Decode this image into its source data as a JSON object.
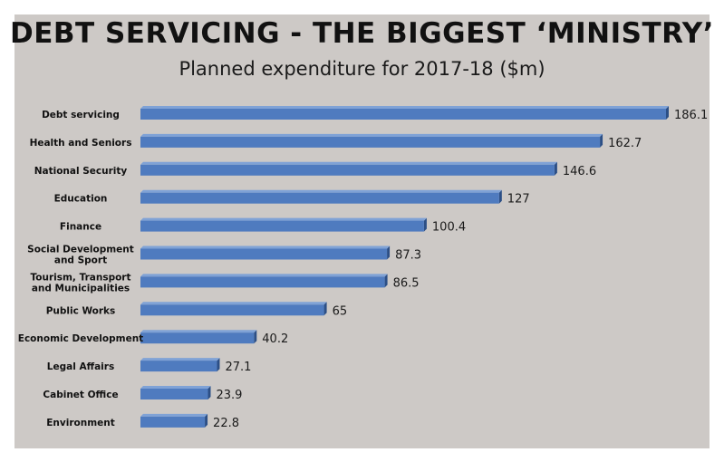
{
  "chart_data": {
    "type": "bar",
    "orientation": "horizontal",
    "title": "DEBT SERVICING - THE BIGGEST ‘MINISTRY’",
    "subtitle": "Planned expenditure for 2017-18 ($m)",
    "categories": [
      "Debt servicing",
      "Health and Seniors",
      "National Security",
      "Education",
      "Finance",
      "Social Development\nand Sport",
      "Tourism, Transport\nand Municipalities",
      "Public Works",
      "Economic Development",
      "Legal Affairs",
      "Cabinet Office",
      "Environment"
    ],
    "values": [
      186.1,
      162.7,
      146.6,
      127,
      100.4,
      87.3,
      86.5,
      65,
      40.2,
      27.1,
      23.9,
      22.8
    ],
    "value_labels": [
      "186.1",
      "162.7",
      "146.6",
      "127",
      "100.4",
      "87.3",
      "86.5",
      "65",
      "40.2",
      "27.1",
      "23.9",
      "22.8"
    ],
    "xlim": [
      0,
      186.1
    ],
    "grid": false,
    "legend": "none",
    "colors": {
      "bar": "#4f7bbf",
      "bar_top": "#7fa2d6",
      "bar_side": "#2c4f86",
      "background": "#cdc9c6"
    }
  }
}
